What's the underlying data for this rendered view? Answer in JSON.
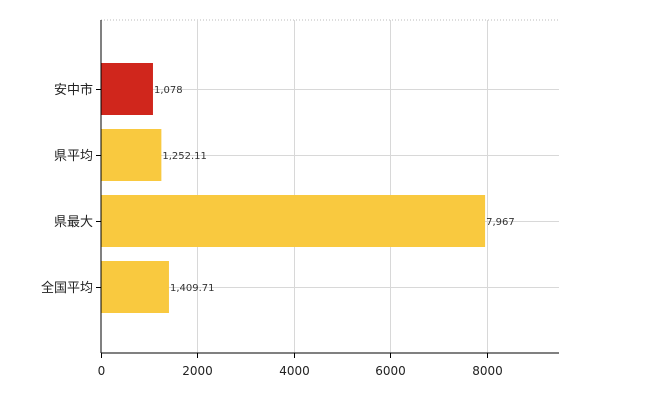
{
  "chart_data": {
    "type": "bar",
    "orientation": "horizontal",
    "categories": [
      "安中市",
      "県平均",
      "県最大",
      "全国平均"
    ],
    "values": [
      1078,
      1252.11,
      7967,
      1409.71
    ],
    "value_labels": [
      "1,078",
      "1,252.11",
      "7,967",
      "1,409.71"
    ],
    "bar_colors": [
      "#d0261c",
      "#f9c93f",
      "#f9c93f",
      "#f9c93f"
    ],
    "xlim": [
      0,
      9500
    ],
    "x_ticks": [
      0,
      2000,
      4000,
      6000,
      8000
    ],
    "x_tick_labels": [
      "0",
      "2000",
      "4000",
      "6000",
      "8000"
    ],
    "grid": true,
    "title": "",
    "xlabel": "",
    "ylabel": ""
  }
}
